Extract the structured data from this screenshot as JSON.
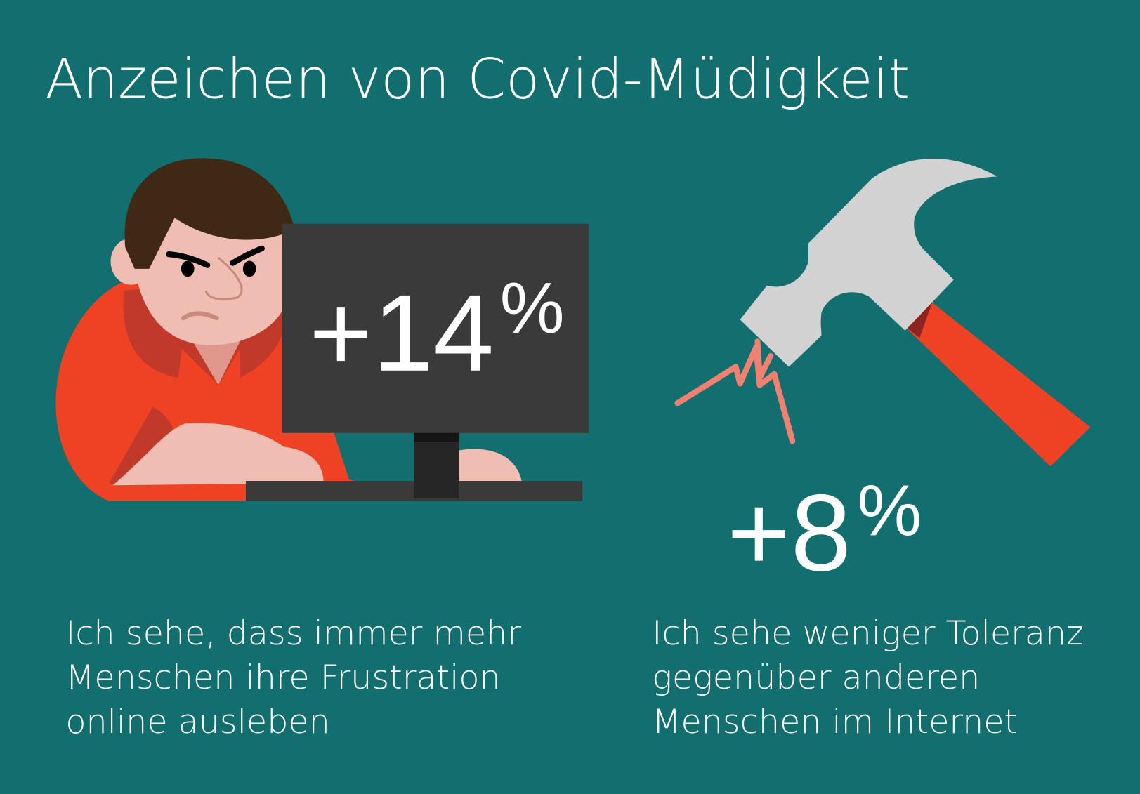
{
  "title": "Anzeichen von Covid-Müdigkeit",
  "colors": {
    "background": "#136e6f",
    "accent": "#ef4123",
    "monitor": "#3a3a3a",
    "hammer_head": "#d2d2d2",
    "crack": "#f08070"
  },
  "stats": [
    {
      "value": "+14",
      "unit": "%",
      "icon": "angry-person-at-computer",
      "lines": [
        "Ich sehe, dass immer mehr",
        "Menschen ihre Frustration",
        "online ausleben"
      ]
    },
    {
      "value": "+8",
      "unit": "%",
      "icon": "hammer-cracking",
      "lines": [
        "Ich sehe weniger Toleranz",
        "gegenüber anderen",
        "Menschen im Internet"
      ]
    }
  ]
}
